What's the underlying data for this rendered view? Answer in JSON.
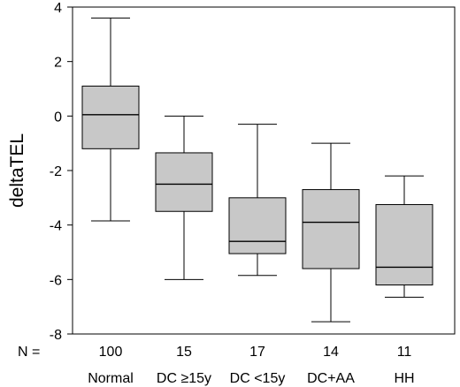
{
  "chart_data": {
    "type": "box",
    "ylabel": "deltaTEL",
    "ylim": [
      -8,
      4
    ],
    "yticks": [
      4,
      2,
      0,
      -2,
      -4,
      -6,
      -8
    ],
    "n_prefix": "N =",
    "categories": [
      "Normal",
      "DC ≥15y",
      "DC <15y",
      "DC+AA",
      "HH"
    ],
    "n": [
      "100",
      "15",
      "17",
      "14",
      "11"
    ],
    "boxes": [
      {
        "whisker_low": -3.85,
        "q1": -1.2,
        "median": 0.05,
        "q3": 1.1,
        "whisker_high": 3.6
      },
      {
        "whisker_low": -6.0,
        "q1": -3.5,
        "median": -2.5,
        "q3": -1.35,
        "whisker_high": 0.0
      },
      {
        "whisker_low": -5.85,
        "q1": -5.05,
        "median": -4.6,
        "q3": -3.0,
        "whisker_high": -0.3
      },
      {
        "whisker_low": -7.55,
        "q1": -5.6,
        "median": -3.9,
        "q3": -2.7,
        "whisker_high": -1.0
      },
      {
        "whisker_low": -6.65,
        "q1": -6.2,
        "median": -5.55,
        "q3": -3.25,
        "whisker_high": -2.2
      }
    ],
    "box_fill": "#c8c8c8",
    "line_color": "#000000",
    "grid": false
  }
}
